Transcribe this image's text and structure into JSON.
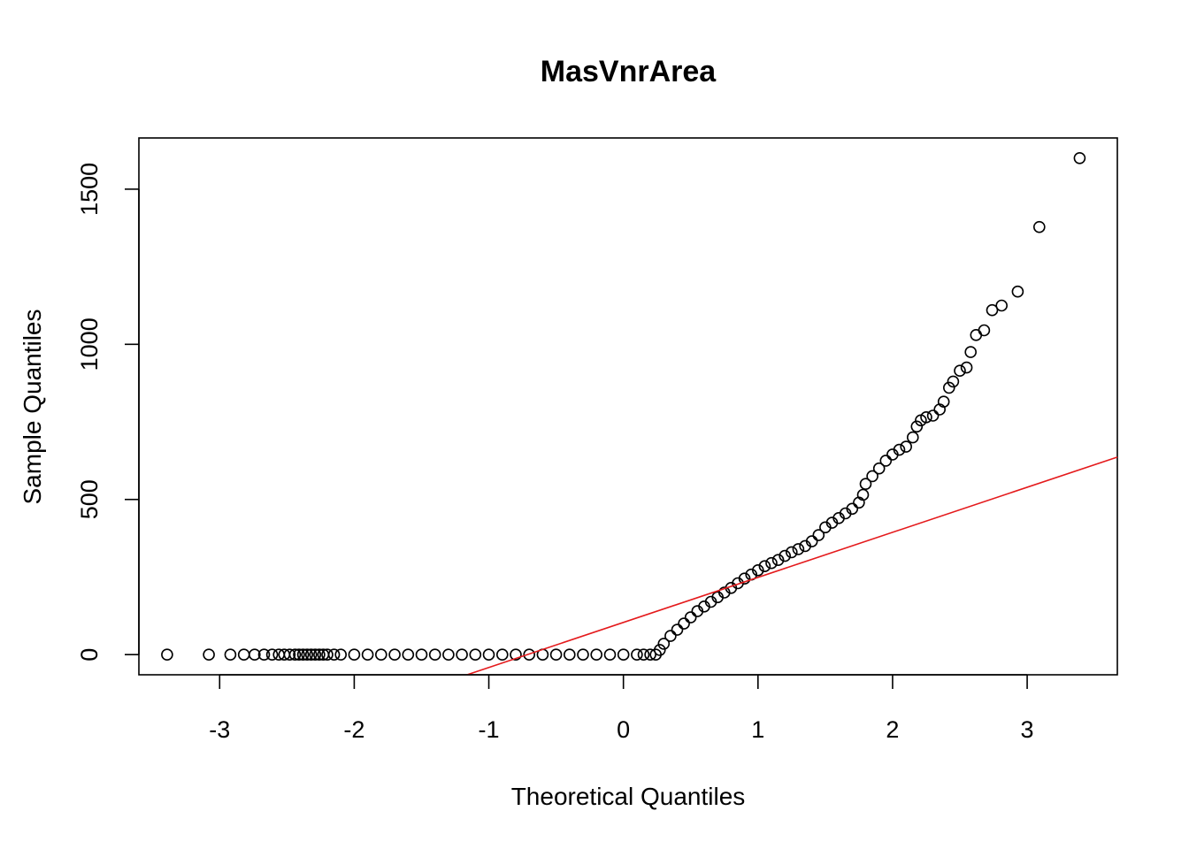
{
  "chart_data": {
    "type": "scatter",
    "title": "MasVnrArea",
    "xlabel": "Theoretical Quantiles",
    "ylabel": "Sample Quantiles",
    "xlim": [
      -3.6,
      3.67
    ],
    "ylim": [
      -65,
      1665
    ],
    "xticks": [
      -3,
      -2,
      -1,
      0,
      1,
      2,
      3
    ],
    "xtick_labels": [
      "-3",
      "-2",
      "-1",
      "0",
      "1",
      "2",
      "3"
    ],
    "yticks": [
      0,
      500,
      1000,
      1500
    ],
    "ytick_labels": [
      "0",
      "500",
      "1000",
      "1500"
    ],
    "grid": false,
    "legend": "none",
    "reference_line": {
      "intercept": 103.7,
      "slope": 145.2,
      "color": "#e41a1c"
    },
    "series": [
      {
        "marker": "open-circle",
        "color": "#000000",
        "points": [
          [
            -3.39,
            0
          ],
          [
            -3.08,
            0
          ],
          [
            -2.92,
            0
          ],
          [
            -2.82,
            0
          ],
          [
            -2.74,
            0
          ],
          [
            -2.67,
            0
          ],
          [
            -2.61,
            0
          ],
          [
            -2.56,
            0
          ],
          [
            -2.52,
            0
          ],
          [
            -2.48,
            0
          ],
          [
            -2.44,
            0
          ],
          [
            -2.41,
            0
          ],
          [
            -2.38,
            0
          ],
          [
            -2.35,
            0
          ],
          [
            -2.32,
            0
          ],
          [
            -2.29,
            0
          ],
          [
            -2.26,
            0
          ],
          [
            -2.23,
            0
          ],
          [
            -2.2,
            0
          ],
          [
            -2.15,
            0
          ],
          [
            -2.1,
            0
          ],
          [
            -2.0,
            0
          ],
          [
            -1.9,
            0
          ],
          [
            -1.8,
            0
          ],
          [
            -1.7,
            0
          ],
          [
            -1.6,
            0
          ],
          [
            -1.5,
            0
          ],
          [
            -1.4,
            0
          ],
          [
            -1.3,
            0
          ],
          [
            -1.2,
            0
          ],
          [
            -1.1,
            0
          ],
          [
            -1.0,
            0
          ],
          [
            -0.9,
            0
          ],
          [
            -0.8,
            0
          ],
          [
            -0.7,
            0
          ],
          [
            -0.6,
            0
          ],
          [
            -0.5,
            0
          ],
          [
            -0.4,
            0
          ],
          [
            -0.3,
            0
          ],
          [
            -0.2,
            0
          ],
          [
            -0.1,
            0
          ],
          [
            0.0,
            0
          ],
          [
            0.1,
            0
          ],
          [
            0.15,
            0
          ],
          [
            0.2,
            0
          ],
          [
            0.24,
            0
          ],
          [
            0.27,
            15
          ],
          [
            0.3,
            35
          ],
          [
            0.35,
            60
          ],
          [
            0.4,
            80
          ],
          [
            0.45,
            100
          ],
          [
            0.5,
            120
          ],
          [
            0.55,
            140
          ],
          [
            0.6,
            155
          ],
          [
            0.65,
            170
          ],
          [
            0.7,
            185
          ],
          [
            0.75,
            200
          ],
          [
            0.8,
            215
          ],
          [
            0.85,
            230
          ],
          [
            0.9,
            245
          ],
          [
            0.95,
            258
          ],
          [
            1.0,
            272
          ],
          [
            1.05,
            285
          ],
          [
            1.1,
            295
          ],
          [
            1.15,
            305
          ],
          [
            1.2,
            318
          ],
          [
            1.25,
            330
          ],
          [
            1.3,
            340
          ],
          [
            1.35,
            350
          ],
          [
            1.4,
            365
          ],
          [
            1.45,
            385
          ],
          [
            1.5,
            410
          ],
          [
            1.55,
            425
          ],
          [
            1.6,
            440
          ],
          [
            1.65,
            455
          ],
          [
            1.7,
            470
          ],
          [
            1.75,
            490
          ],
          [
            1.78,
            515
          ],
          [
            1.8,
            550
          ],
          [
            1.85,
            575
          ],
          [
            1.9,
            600
          ],
          [
            1.95,
            625
          ],
          [
            2.0,
            645
          ],
          [
            2.05,
            660
          ],
          [
            2.1,
            670
          ],
          [
            2.15,
            700
          ],
          [
            2.18,
            735
          ],
          [
            2.21,
            755
          ],
          [
            2.25,
            765
          ],
          [
            2.3,
            770
          ],
          [
            2.35,
            790
          ],
          [
            2.38,
            815
          ],
          [
            2.42,
            860
          ],
          [
            2.45,
            880
          ],
          [
            2.5,
            915
          ],
          [
            2.55,
            925
          ],
          [
            2.58,
            975
          ],
          [
            2.62,
            1030
          ],
          [
            2.68,
            1045
          ],
          [
            2.74,
            1110
          ],
          [
            2.81,
            1125
          ],
          [
            2.93,
            1170
          ],
          [
            3.09,
            1378
          ],
          [
            3.39,
            1600
          ]
        ]
      }
    ]
  }
}
